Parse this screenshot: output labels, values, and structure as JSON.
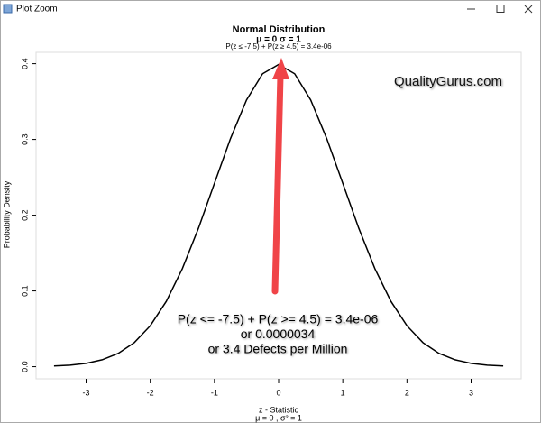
{
  "window": {
    "title": "Plot Zoom"
  },
  "chart_data": {
    "type": "line",
    "title": "Normal Distribution",
    "subtitle": "μ = 0   σ = 1",
    "note": "P(z ≤ -7.5) + P(z ≥ 4.5) = 3.4e-06",
    "watermark": "QualityGurus.com",
    "annotation": [
      "P(z <= -7.5) + P(z >= 4.5) = 3.4e-06",
      "or 0.0000034",
      "or 3.4 Defects per Million"
    ],
    "x_label": "z - Statistic",
    "x_sublabel": "μ = 0 , σ² = 1",
    "y_label": "Probability Density",
    "x": [
      -3.5,
      -3.25,
      -3,
      -2.75,
      -2.5,
      -2.25,
      -2,
      -1.75,
      -1.5,
      -1.25,
      -1,
      -0.75,
      -0.5,
      -0.25,
      0,
      0.25,
      0.5,
      0.75,
      1,
      1.25,
      1.5,
      1.75,
      2,
      2.25,
      2.5,
      2.75,
      3,
      3.25,
      3.5
    ],
    "series": [
      {
        "name": "density",
        "color": "#000000",
        "values": [
          0.0009,
          0.002,
          0.0044,
          0.0091,
          0.0175,
          0.0317,
          0.054,
          0.0863,
          0.1295,
          0.1826,
          0.242,
          0.3011,
          0.3521,
          0.3867,
          0.3989,
          0.3867,
          0.3521,
          0.3011,
          0.242,
          0.1826,
          0.1295,
          0.0863,
          0.054,
          0.0317,
          0.0175,
          0.0091,
          0.0044,
          0.002,
          0.0009
        ]
      }
    ],
    "xlim": [
      -3.78,
      3.78
    ],
    "xticks": [
      -3,
      -2,
      -1,
      0,
      1,
      2,
      3
    ],
    "ylim": [
      -0.016,
      0.415
    ],
    "yticks": [
      {
        "value": 0,
        "label": "0.0"
      },
      0.1,
      0.2,
      0.3,
      0.4
    ]
  }
}
